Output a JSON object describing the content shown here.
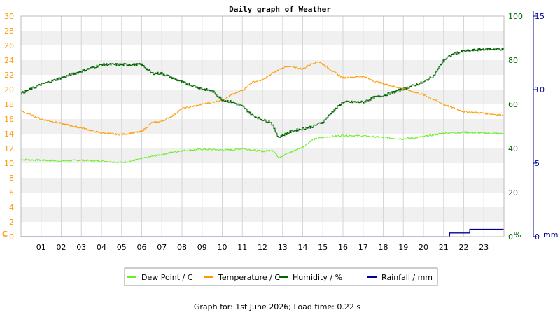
{
  "chart_data": {
    "type": "line",
    "title": "Daily graph of Weather",
    "x_tick_labels": [
      "01",
      "02",
      "03",
      "04",
      "05",
      "06",
      "07",
      "08",
      "09",
      "10",
      "11",
      "12",
      "13",
      "14",
      "15",
      "16",
      "17",
      "18",
      "19",
      "20",
      "21",
      "22",
      "23"
    ],
    "xlim": [
      0,
      24
    ],
    "axes": {
      "left": {
        "unit_label": "C",
        "range": [
          0,
          30
        ],
        "ticks": [
          "0",
          "2",
          "4",
          "6",
          "8",
          "10",
          "12",
          "14",
          "16",
          "18",
          "20",
          "22",
          "24",
          "26",
          "28",
          "30"
        ],
        "color": "#ff9900"
      },
      "humidity": {
        "unit_label": "%",
        "range": [
          0,
          100
        ],
        "ticks": [
          "0",
          "20",
          "40",
          "60",
          "80",
          "100"
        ],
        "color": "#006600"
      },
      "rain": {
        "unit_label": "mm",
        "range": [
          0,
          15
        ],
        "ticks": [
          "0",
          "5",
          "10",
          "15"
        ],
        "color": "#000099"
      }
    },
    "series": [
      {
        "name": "Dew Point / C",
        "axis": "left",
        "color": "#66ee22",
        "x": [
          0,
          1,
          2,
          3,
          4,
          5,
          5.5,
          6,
          7,
          8,
          9,
          10,
          10.5,
          11,
          12,
          12.5,
          12.8,
          13,
          13.5,
          14,
          14.5,
          15,
          16,
          17,
          18,
          19,
          20,
          21,
          22,
          23,
          24
        ],
        "y": [
          10.5,
          10.4,
          10.3,
          10.4,
          10.3,
          10.1,
          10.3,
          10.6,
          11.2,
          11.7,
          11.9,
          11.8,
          11.8,
          12.0,
          11.6,
          11.8,
          10.8,
          11.0,
          11.6,
          12.2,
          13.2,
          13.5,
          13.8,
          13.7,
          13.5,
          13.3,
          13.6,
          14.1,
          14.2,
          14.1,
          14.0
        ]
      },
      {
        "name": "Temperature / C",
        "axis": "left",
        "color": "#ff9900",
        "x": [
          0,
          1,
          2,
          3,
          4,
          5,
          6,
          6.5,
          7,
          7.5,
          8,
          9,
          10,
          10.5,
          11,
          11.5,
          12,
          12.5,
          13,
          13.5,
          14,
          14.5,
          14.8,
          15.5,
          16,
          16.5,
          17,
          17.5,
          18,
          19,
          20,
          21,
          22,
          23,
          24
        ],
        "y": [
          17.1,
          16.0,
          15.4,
          14.8,
          14.1,
          13.9,
          14.3,
          15.5,
          15.7,
          16.4,
          17.4,
          18.0,
          18.6,
          19.3,
          19.9,
          21.0,
          21.3,
          22.2,
          23.0,
          23.1,
          22.8,
          23.6,
          23.8,
          22.5,
          21.6,
          21.7,
          21.8,
          21.2,
          20.8,
          20.1,
          19.3,
          18.0,
          17.0,
          16.8,
          16.5
        ]
      },
      {
        "name": "Humidity / %",
        "axis": "humidity",
        "color": "#006600",
        "x": [
          0,
          1,
          2,
          3,
          4,
          5,
          6,
          6.5,
          7,
          7.5,
          8,
          9,
          9.5,
          10,
          10.5,
          11,
          11.5,
          12,
          12.4,
          12.8,
          13,
          13.5,
          14,
          14.5,
          15,
          15.5,
          16,
          16.5,
          17,
          17.5,
          18,
          19,
          20,
          20.5,
          21,
          21.5,
          22,
          23,
          24
        ],
        "y": [
          65,
          69,
          72,
          75,
          78,
          78,
          78,
          74,
          74,
          72,
          70,
          67,
          66,
          62,
          61,
          59,
          55,
          53,
          52,
          45,
          46,
          48,
          49,
          50,
          52,
          57,
          61,
          61,
          61,
          63,
          64,
          67,
          70,
          73,
          80,
          83,
          84,
          85,
          85
        ]
      },
      {
        "name": "Rainfall / mm",
        "axis": "rain",
        "color": "#000099",
        "x": [
          0,
          21.3,
          21.3,
          22.3,
          22.3,
          24
        ],
        "y": [
          0,
          0,
          0.25,
          0.25,
          0.5,
          0.5
        ]
      }
    ],
    "legend_position": "bottom",
    "grid": true
  },
  "footer": "Graph for: 1st June 2026; Load time: 0.22 s"
}
